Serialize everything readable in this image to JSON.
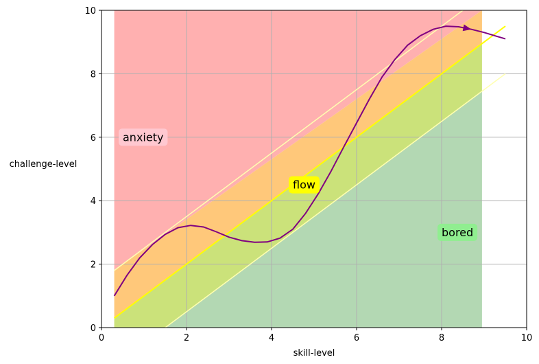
{
  "chart_data": {
    "type": "area",
    "xlabel": "skill-level",
    "ylabel": "challenge-level",
    "xlim": [
      0,
      10
    ],
    "ylim": [
      0,
      10
    ],
    "xticks": [
      0,
      2,
      4,
      6,
      8,
      10
    ],
    "yticks": [
      0,
      2,
      4,
      6,
      8,
      10
    ],
    "grid": true,
    "regions": [
      {
        "name": "anxiety",
        "color": "#ffb0b0",
        "x_range": [
          0.3,
          8.95
        ]
      },
      {
        "name": "flow",
        "color": "#ffc87a",
        "x_range": [
          0.3,
          8.95
        ],
        "lower_offset": 0,
        "upper_offset": 1.5
      },
      {
        "name": "flow",
        "color": "#cbe27a",
        "x_range": [
          0.3,
          8.95
        ],
        "lower_offset": -1.5,
        "upper_offset": 0
      },
      {
        "name": "bored",
        "color": "#b3d8b3",
        "x_range": [
          0.3,
          8.95
        ]
      }
    ],
    "flow_channel": {
      "center_line": {
        "x": [
          0.3,
          9.5
        ],
        "y": [
          0.3,
          9.5
        ],
        "color": "#ffff00"
      },
      "upper_line": {
        "x": [
          0.3,
          9.5
        ],
        "y": [
          1.8,
          11.0
        ],
        "color": "#ffffb0"
      },
      "lower_line": {
        "x": [
          0.3,
          9.5
        ],
        "y": [
          -1.2,
          8.0
        ],
        "color": "#ffffb0"
      }
    },
    "annotations": [
      {
        "text": "anxiety",
        "x": 0.5,
        "y": 6.0,
        "bgcolor": "#ffc8d0"
      },
      {
        "text": "flow",
        "x": 4.5,
        "y": 4.5,
        "bgcolor": "#ffff00"
      },
      {
        "text": "bored",
        "x": 8.0,
        "y": 3.0,
        "bgcolor": "#90ee90"
      }
    ],
    "series": [
      {
        "type": "line",
        "color": "#800080",
        "arrow_at_x": 8.7,
        "x": [
          0.3,
          0.6,
          0.9,
          1.2,
          1.5,
          1.8,
          2.1,
          2.4,
          2.7,
          3.0,
          3.3,
          3.6,
          3.9,
          4.2,
          4.5,
          4.8,
          5.1,
          5.4,
          5.7,
          6.0,
          6.3,
          6.6,
          6.9,
          7.2,
          7.5,
          7.8,
          8.1,
          8.4,
          8.7,
          9.0,
          9.3,
          9.5
        ],
        "y": [
          1.0,
          1.65,
          2.2,
          2.62,
          2.94,
          3.15,
          3.22,
          3.17,
          3.02,
          2.85,
          2.74,
          2.69,
          2.7,
          2.82,
          3.1,
          3.6,
          4.22,
          4.93,
          5.7,
          6.45,
          7.2,
          7.9,
          8.45,
          8.9,
          9.2,
          9.4,
          9.5,
          9.48,
          9.4,
          9.3,
          9.18,
          9.1
        ]
      }
    ]
  }
}
